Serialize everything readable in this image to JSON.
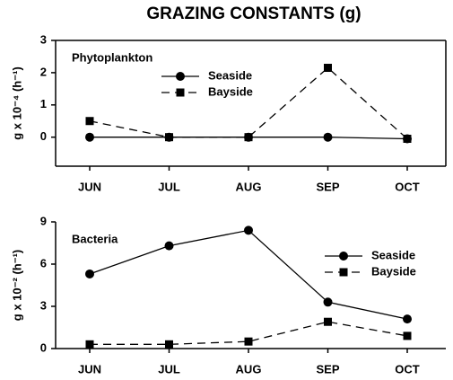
{
  "title": "GRAZING CONSTANTS (g)",
  "chart_data": [
    {
      "type": "line",
      "annotation": "Phytoplankton",
      "ylabel": "g x 10⁻⁴ (h⁻¹)",
      "categories": [
        "JUN",
        "JUL",
        "AUG",
        "SEP",
        "OCT"
      ],
      "series": [
        {
          "name": "Seaside",
          "color": "#000000",
          "values": [
            0,
            0,
            0,
            0,
            -0.05
          ]
        },
        {
          "name": "Bayside",
          "color": "#000000",
          "values": [
            0.5,
            0,
            0,
            2.15,
            -0.05
          ]
        }
      ],
      "ylim": [
        -0.9,
        3
      ],
      "yticks": [
        0,
        1,
        2,
        3
      ],
      "box": true
    },
    {
      "type": "line",
      "annotation": "Bacteria",
      "ylabel": "g x 10⁻² (h⁻¹)",
      "categories": [
        "JUN",
        "JUL",
        "AUG",
        "SEP",
        "OCT"
      ],
      "series": [
        {
          "name": "Seaside",
          "color": "#000000",
          "values": [
            5.3,
            7.3,
            8.4,
            3.3,
            2.1
          ]
        },
        {
          "name": "Bayside",
          "color": "#000000",
          "values": [
            0.3,
            0.3,
            0.5,
            1.9,
            0.9
          ]
        }
      ],
      "ylim": [
        0,
        9
      ],
      "yticks": [
        0,
        3,
        6,
        9
      ],
      "box": false
    }
  ]
}
